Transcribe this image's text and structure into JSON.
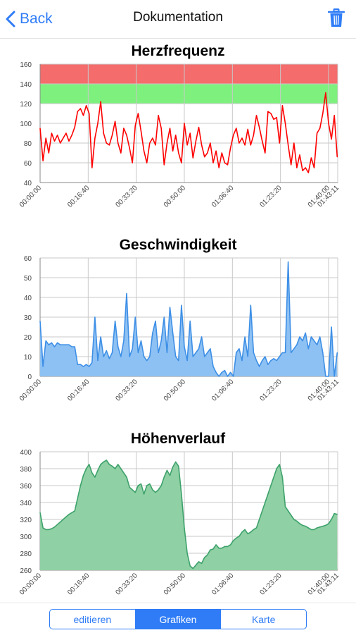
{
  "navbar": {
    "back_label": "Back",
    "title": "Dokumentation",
    "back_icon": "chevron-left-icon",
    "trash_icon": "trash-icon"
  },
  "colors": {
    "accent": "#2f7cf6",
    "hr_line": "#ff0000",
    "hr_zone_high": "#f46c6c",
    "hr_zone_target": "#7ef07e",
    "speed": "#3d8fe6",
    "speed_fill": "#8ec1f3",
    "elevation": "#3ea26b",
    "elevation_fill": "#8fd0a4"
  },
  "tabs": [
    {
      "label": "editieren",
      "active": false
    },
    {
      "label": "Grafiken",
      "active": true
    },
    {
      "label": "Karte",
      "active": false
    }
  ],
  "chart_data": [
    {
      "type": "line",
      "title": "Herzfrequenz",
      "xlabel": "",
      "ylabel": "",
      "ylim": [
        40,
        160
      ],
      "xlim_minutes": [
        0,
        103.18
      ],
      "yticks": [
        40,
        60,
        80,
        100,
        120,
        140,
        160
      ],
      "xtick_labels": [
        "00:00:00",
        "00:16:40",
        "00:33:20",
        "00:50:00",
        "01:06:40",
        "01:23:20",
        "01:40:00",
        "01:43:11"
      ],
      "xtick_minutes": [
        0,
        16.67,
        33.33,
        50,
        66.67,
        83.33,
        100,
        103.18
      ],
      "zones": [
        {
          "from": 140,
          "to": 160,
          "color": "#f46c6c"
        },
        {
          "from": 120,
          "to": 140,
          "color": "#7ef07e"
        }
      ],
      "x": [
        0,
        1,
        2,
        3,
        4,
        5,
        6,
        7,
        8,
        9,
        10,
        11,
        12,
        13,
        14,
        15,
        16,
        17,
        18,
        19,
        20,
        21,
        22,
        23,
        24,
        25,
        26,
        27,
        28,
        29,
        30,
        31,
        32,
        33,
        34,
        35,
        36,
        37,
        38,
        39,
        40,
        41,
        42,
        43,
        44,
        45,
        46,
        47,
        48,
        49,
        50,
        51,
        52,
        53,
        54,
        55,
        56,
        57,
        58,
        59,
        60,
        61,
        62,
        63,
        64,
        65,
        66,
        67,
        68,
        69,
        70,
        71,
        72,
        73,
        74,
        75,
        76,
        77,
        78,
        79,
        80,
        81,
        82,
        83,
        84,
        85,
        86,
        87,
        88,
        89,
        90,
        91,
        92,
        93,
        94,
        95,
        96,
        97,
        98,
        99,
        100,
        101,
        102,
        103
      ],
      "y": [
        95,
        62,
        85,
        70,
        90,
        82,
        88,
        80,
        85,
        90,
        82,
        88,
        96,
        112,
        115,
        108,
        118,
        110,
        55,
        85,
        100,
        122,
        90,
        80,
        78,
        88,
        102,
        80,
        70,
        95,
        88,
        75,
        60,
        98,
        110,
        92,
        72,
        60,
        80,
        85,
        78,
        108,
        95,
        58,
        80,
        95,
        72,
        88,
        70,
        60,
        100,
        78,
        90,
        65,
        82,
        96,
        78,
        66,
        70,
        80,
        60,
        72,
        55,
        70,
        60,
        58,
        75,
        88,
        95,
        80,
        85,
        78,
        94,
        78,
        88,
        108,
        96,
        82,
        70,
        112,
        110,
        104,
        106,
        80,
        118,
        100,
        78,
        58,
        80,
        55,
        68,
        52,
        55,
        50,
        65,
        55,
        90,
        95,
        110,
        131,
        100,
        84,
        108,
        66
      ]
    },
    {
      "type": "area",
      "title": "Geschwindigkeit",
      "xlabel": "",
      "ylabel": "",
      "ylim": [
        0,
        60
      ],
      "xlim_minutes": [
        0,
        103.18
      ],
      "yticks": [
        0,
        10,
        20,
        30,
        40,
        50,
        60
      ],
      "xtick_labels": [
        "00:00:00",
        "00:16:40",
        "00:33:20",
        "00:50:00",
        "01:06:40",
        "01:23:20",
        "01:40:00",
        "01:43:11"
      ],
      "xtick_minutes": [
        0,
        16.67,
        33.33,
        50,
        66.67,
        83.33,
        100,
        103.18
      ],
      "x": [
        0,
        1,
        2,
        3,
        4,
        5,
        6,
        7,
        8,
        9,
        10,
        11,
        12,
        13,
        14,
        15,
        16,
        17,
        18,
        19,
        20,
        21,
        22,
        23,
        24,
        25,
        26,
        27,
        28,
        29,
        30,
        31,
        32,
        33,
        34,
        35,
        36,
        37,
        38,
        39,
        40,
        41,
        42,
        43,
        44,
        45,
        46,
        47,
        48,
        49,
        50,
        51,
        52,
        53,
        54,
        55,
        56,
        57,
        58,
        59,
        60,
        61,
        62,
        63,
        64,
        65,
        66,
        67,
        68,
        69,
        70,
        71,
        72,
        73,
        74,
        75,
        76,
        77,
        78,
        79,
        80,
        81,
        82,
        83,
        84,
        85,
        86,
        87,
        88,
        89,
        90,
        91,
        92,
        93,
        94,
        95,
        96,
        97,
        98,
        99,
        100,
        101,
        102,
        103
      ],
      "y": [
        28,
        5,
        18,
        16,
        17,
        15,
        17,
        16,
        16,
        16,
        16,
        15,
        15,
        6,
        6,
        5,
        6,
        5,
        7,
        30,
        8,
        20,
        10,
        13,
        9,
        12,
        28,
        15,
        10,
        18,
        42,
        10,
        14,
        30,
        12,
        18,
        10,
        8,
        10,
        22,
        28,
        12,
        18,
        30,
        12,
        35,
        22,
        10,
        8,
        36,
        15,
        8,
        28,
        10,
        12,
        14,
        20,
        10,
        12,
        14,
        5,
        2,
        0,
        2,
        3,
        0,
        2,
        0,
        12,
        14,
        8,
        20,
        10,
        36,
        12,
        8,
        5,
        8,
        10,
        6,
        8,
        9,
        8,
        10,
        12,
        12,
        58,
        12,
        14,
        16,
        20,
        18,
        22,
        14,
        20,
        18,
        16,
        20,
        12,
        0,
        0,
        25,
        0,
        12
      ]
    },
    {
      "type": "area",
      "title": "Höhenverlauf",
      "xlabel": "",
      "ylabel": "",
      "ylim": [
        260,
        400
      ],
      "xlim_minutes": [
        0,
        103.18
      ],
      "yticks": [
        260,
        280,
        300,
        320,
        340,
        360,
        380,
        400
      ],
      "xtick_labels": [
        "00:00:00",
        "00:16:40",
        "00:33:20",
        "00:50:00",
        "01:06:40",
        "01:23:20",
        "01:40:00",
        "01:43:11"
      ],
      "xtick_minutes": [
        0,
        16.67,
        33.33,
        50,
        66.67,
        83.33,
        100,
        103.18
      ],
      "x": [
        0,
        1,
        2,
        3,
        4,
        5,
        6,
        7,
        8,
        9,
        10,
        11,
        12,
        13,
        14,
        15,
        16,
        17,
        18,
        19,
        20,
        21,
        22,
        23,
        24,
        25,
        26,
        27,
        28,
        29,
        30,
        31,
        32,
        33,
        34,
        35,
        36,
        37,
        38,
        39,
        40,
        41,
        42,
        43,
        44,
        45,
        46,
        47,
        48,
        49,
        50,
        51,
        52,
        53,
        54,
        55,
        56,
        57,
        58,
        59,
        60,
        61,
        62,
        63,
        64,
        65,
        66,
        67,
        68,
        69,
        70,
        71,
        72,
        73,
        74,
        75,
        76,
        77,
        78,
        79,
        80,
        81,
        82,
        83,
        84,
        85,
        86,
        87,
        88,
        89,
        90,
        91,
        92,
        93,
        94,
        95,
        96,
        97,
        98,
        99,
        100,
        101,
        102,
        103
      ],
      "y": [
        328,
        310,
        308,
        308,
        309,
        311,
        314,
        317,
        320,
        323,
        326,
        328,
        330,
        345,
        360,
        372,
        380,
        385,
        375,
        370,
        378,
        385,
        388,
        390,
        385,
        383,
        380,
        385,
        380,
        375,
        370,
        358,
        355,
        352,
        360,
        362,
        350,
        360,
        362,
        355,
        352,
        355,
        360,
        370,
        378,
        372,
        382,
        388,
        383,
        350,
        310,
        280,
        265,
        262,
        266,
        270,
        268,
        275,
        278,
        284,
        285,
        290,
        286,
        286,
        288,
        288,
        290,
        295,
        298,
        300,
        305,
        308,
        303,
        305,
        308,
        310,
        320,
        330,
        340,
        350,
        360,
        370,
        380,
        385,
        370,
        335,
        330,
        325,
        320,
        318,
        315,
        313,
        312,
        310,
        308,
        308,
        310,
        311,
        312,
        313,
        315,
        320,
        327,
        326
      ]
    }
  ]
}
